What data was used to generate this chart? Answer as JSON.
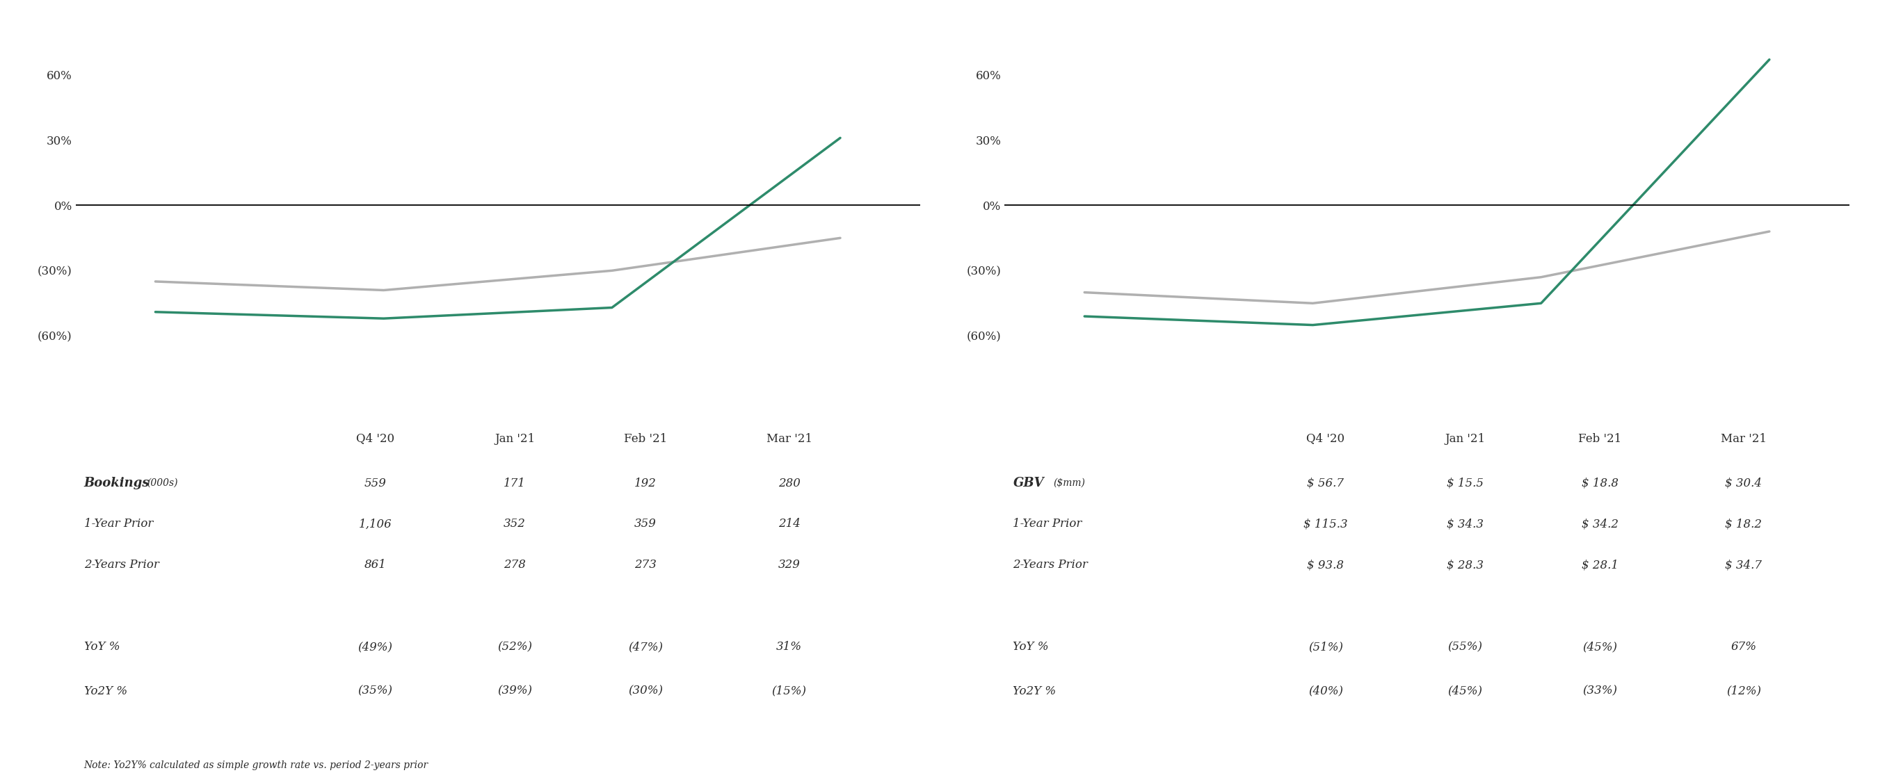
{
  "bookings_title": "Bookings",
  "gbv_title": "GBV",
  "categories": [
    "Q4 '20",
    "Jan '21",
    "Feb '21",
    "Mar '21"
  ],
  "bookings_yoy": [
    -49,
    -52,
    -47,
    31
  ],
  "bookings_yo2y": [
    -35,
    -39,
    -30,
    -15
  ],
  "gbv_yoy": [
    -51,
    -55,
    -45,
    67
  ],
  "gbv_yo2y": [
    -40,
    -45,
    -33,
    -12
  ],
  "yoy_color": "#2e8b6b",
  "yo2y_color": "#b0b0b0",
  "line_width": 2.5,
  "zero_line_color": "#000000",
  "ylim": [
    -72,
    80
  ],
  "yticks": [
    -60,
    -30,
    0,
    30,
    60
  ],
  "ytick_labels": [
    "(60%)",
    "(30%)",
    "0%",
    "30%",
    "60%"
  ],
  "bookings_table": {
    "row0_label": "Bookings",
    "row0_sublabel": "(000s)",
    "row0_values": [
      "559",
      "171",
      "192",
      "280"
    ],
    "row1_label": "1-Year Prior",
    "row1_values": [
      "1,106",
      "352",
      "359",
      "214"
    ],
    "row2_label": "2-Years Prior",
    "row2_values": [
      "861",
      "278",
      "273",
      "329"
    ],
    "row3_label": "YoY %",
    "row3_values": [
      "(49%)",
      "(52%)",
      "(47%)",
      "31%"
    ],
    "row4_label": "Yo2Y %",
    "row4_values": [
      "(35%)",
      "(39%)",
      "(30%)",
      "(15%)"
    ]
  },
  "gbv_table": {
    "row0_label": "GBV",
    "row0_sublabel": "($mm)",
    "row0_values": [
      "$ 56.7",
      "$ 15.5",
      "$ 18.8",
      "$ 30.4"
    ],
    "row1_label": "1-Year Prior",
    "row1_values": [
      "$ 115.3",
      "$ 34.3",
      "$ 34.2",
      "$ 18.2"
    ],
    "row2_label": "2-Years Prior",
    "row2_values": [
      "$ 93.8",
      "$ 28.3",
      "$ 28.1",
      "$ 34.7"
    ],
    "row3_label": "YoY %",
    "row3_values": [
      "(51%)",
      "(55%)",
      "(45%)",
      "67%"
    ],
    "row4_label": "Yo2Y %",
    "row4_values": [
      "(40%)",
      "(45%)",
      "(33%)",
      "(12%)"
    ]
  },
  "note": "Note: Yo2Y% calculated as simple growth rate vs. period 2-years prior",
  "bg_color": "#ffffff",
  "text_color": "#2b2b2b",
  "legend_yoy": "YoY %",
  "legend_yo2y": "Yo2Y %",
  "title_fontsize": 20,
  "legend_fontsize": 12,
  "tick_fontsize": 12,
  "table_header_fontsize": 12,
  "table_value_fontsize": 12,
  "note_fontsize": 10
}
